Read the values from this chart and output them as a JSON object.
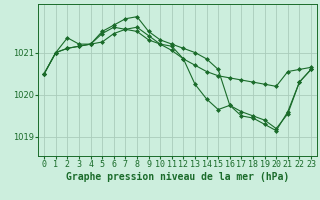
{
  "x": [
    0,
    1,
    2,
    3,
    4,
    5,
    6,
    7,
    8,
    9,
    10,
    11,
    12,
    13,
    14,
    15,
    16,
    17,
    18,
    19,
    20,
    21,
    22,
    23
  ],
  "series1": [
    1020.5,
    1021.0,
    1021.1,
    1021.15,
    1021.2,
    1021.25,
    1021.45,
    1021.55,
    1021.6,
    1021.4,
    1021.2,
    1021.05,
    1020.85,
    1020.7,
    1020.55,
    1020.45,
    1020.4,
    1020.35,
    1020.3,
    1020.25,
    1020.2,
    1020.55,
    1020.6,
    1020.65
  ],
  "series2": [
    1020.5,
    1021.0,
    1021.35,
    1021.2,
    1021.2,
    1021.45,
    1021.6,
    1021.55,
    1021.5,
    1021.3,
    1021.2,
    1021.15,
    1020.85,
    1020.25,
    1019.9,
    1019.65,
    1019.75,
    1019.5,
    1019.45,
    1019.3,
    1019.15,
    1019.6,
    1020.3,
    1020.6
  ],
  "series3": [
    1020.5,
    1021.0,
    1021.1,
    1021.15,
    1021.2,
    1021.5,
    1021.65,
    1021.8,
    1021.85,
    1021.5,
    1021.3,
    1021.2,
    1021.1,
    1021.0,
    1020.85,
    1020.6,
    1019.75,
    1019.6,
    1019.5,
    1019.4,
    1019.2,
    1019.55,
    1020.3,
    1020.6
  ],
  "bg_color": "#cceedd",
  "line_color": "#1a6b2a",
  "grid_color": "#aaccbb",
  "title": "Graphe pression niveau de la mer (hPa)",
  "yticks": [
    1019,
    1020,
    1021
  ],
  "ylim": [
    1018.55,
    1022.15
  ],
  "xlim": [
    -0.5,
    23.5
  ],
  "title_fontsize": 7.0,
  "tick_fontsize": 6.0
}
